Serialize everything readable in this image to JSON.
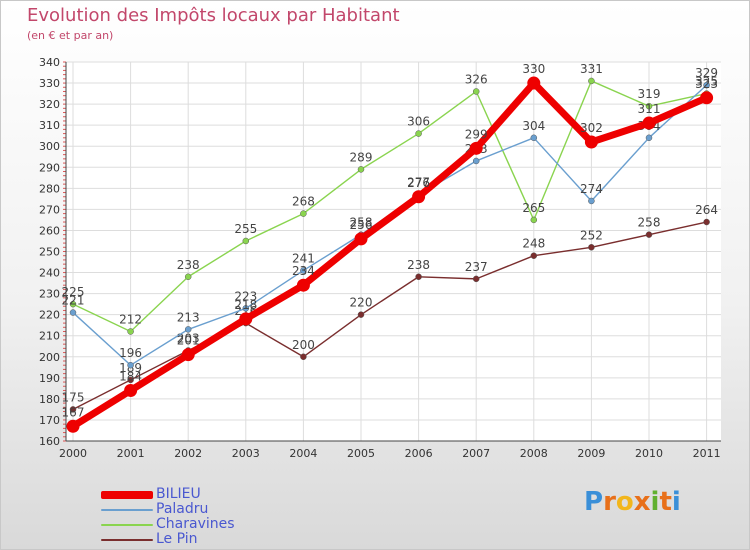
{
  "title": "Evolution des Impôts locaux par Habitant",
  "subtitle": "(en € et par an)",
  "logo": {
    "letters": [
      "P",
      "r",
      "o",
      "x",
      "i",
      "t",
      "i"
    ],
    "colors": [
      "#3a8fd8",
      "#e8701a",
      "#f2b61c",
      "#e8701a",
      "#60b030",
      "#e8701a",
      "#3a8fd8"
    ]
  },
  "chart_data": {
    "type": "line",
    "title": "Evolution des Impôts locaux par Habitant",
    "subtitle": "(en € et par an)",
    "x": [
      "2000",
      "2001",
      "2002",
      "2003",
      "2004",
      "2005",
      "2006",
      "2007",
      "2008",
      "2009",
      "2010",
      "2011"
    ],
    "ylim": [
      160,
      340
    ],
    "yticks": [
      160,
      170,
      180,
      190,
      200,
      210,
      220,
      230,
      240,
      250,
      260,
      270,
      280,
      290,
      300,
      310,
      320,
      330,
      340
    ],
    "grid": true,
    "legend_position": "bottom-left",
    "series": [
      {
        "name": "Le Pin",
        "color": "#7a2e2e",
        "values": [
          175,
          189,
          203,
          216,
          200,
          220,
          238,
          237,
          248,
          252,
          258,
          264
        ],
        "labels": [
          "175",
          "189",
          "203",
          "216",
          "200",
          "220",
          "238",
          "237",
          "248",
          "252",
          "258",
          "264"
        ]
      },
      {
        "name": "Charavines",
        "color": "#8ad44f",
        "values": [
          225,
          212,
          238,
          255,
          268,
          289,
          306,
          326,
          265,
          331,
          319,
          325
        ],
        "labels": [
          "225",
          "212",
          "238",
          "255",
          "268",
          "289",
          "306",
          "326",
          "265",
          "331",
          "319",
          "325"
        ]
      },
      {
        "name": "Paladru",
        "color": "#6a9fcf",
        "values": [
          221,
          196,
          213,
          223,
          241,
          258,
          277,
          293,
          304,
          274,
          304,
          329
        ],
        "labels": [
          "221",
          "196",
          "213",
          "223",
          "241",
          "258",
          "277",
          "293",
          "304",
          "274",
          "304",
          "329"
        ]
      },
      {
        "name": "BILIEU",
        "color": "#ee0000",
        "values": [
          167,
          184,
          201,
          218,
          234,
          256,
          276,
          299,
          330,
          302,
          311,
          323
        ],
        "labels": [
          "167",
          "184",
          "201",
          "218",
          "234",
          "256",
          "276",
          "299",
          "330",
          "302",
          "311",
          "323"
        ]
      }
    ]
  }
}
